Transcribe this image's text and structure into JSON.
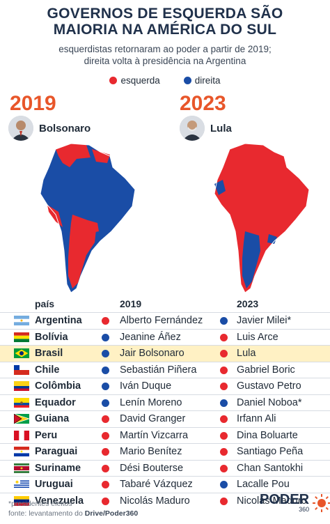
{
  "title": "GOVERNOS DE ESQUERDA SÃO MAIORIA NA AMÉRICA DO SUL",
  "subtitle_line1": "esquerdistas retornaram ao poder a partir de 2019;",
  "subtitle_line2": "direita volta à presidência na Argentina",
  "legend": {
    "left": "esquerda",
    "right": "direita"
  },
  "colors": {
    "left": "#e8292f",
    "right": "#1a4da6",
    "accent": "#e8562a",
    "highlight": "#fff1c4"
  },
  "panels": [
    {
      "year": "2019",
      "president": "Bolsonaro"
    },
    {
      "year": "2023",
      "president": "Lula"
    }
  ],
  "table_headers": {
    "country": "país",
    "y1": "2019",
    "y2": "2023"
  },
  "rows": [
    {
      "country": "Argentina",
      "p2019": "Alberto Fernández",
      "s2019": "left",
      "p2023": "Javier Milei*",
      "s2023": "right"
    },
    {
      "country": "Bolívia",
      "p2019": "Jeanine Áñez",
      "s2019": "right",
      "p2023": "Luis Arce",
      "s2023": "left"
    },
    {
      "country": "Brasil",
      "p2019": "Jair Bolsonaro",
      "s2019": "right",
      "p2023": "Lula",
      "s2023": "left"
    },
    {
      "country": "Chile",
      "p2019": "Sebastián Piñera",
      "s2019": "right",
      "p2023": "Gabriel Boric",
      "s2023": "left"
    },
    {
      "country": "Colômbia",
      "p2019": "Iván Duque",
      "s2019": "right",
      "p2023": "Gustavo Petro",
      "s2023": "left"
    },
    {
      "country": "Equador",
      "p2019": "Lenín Moreno",
      "s2019": "right",
      "p2023": "Daniel Noboa*",
      "s2023": "right"
    },
    {
      "country": "Guiana",
      "p2019": "David Granger",
      "s2019": "left",
      "p2023": "Irfann Ali",
      "s2023": "left"
    },
    {
      "country": "Peru",
      "p2019": "Martín Vizcarra",
      "s2019": "left",
      "p2023": "Dina Boluarte",
      "s2023": "left"
    },
    {
      "country": "Paraguai",
      "p2019": "Mario Benítez",
      "s2019": "left",
      "p2023": "Santiago Peña",
      "s2023": "left"
    },
    {
      "country": "Suriname",
      "p2019": "Dési Bouterse",
      "s2019": "left",
      "p2023": "Chan Santokhi",
      "s2023": "left"
    },
    {
      "country": "Uruguai",
      "p2019": "Tabaré Vázquez",
      "s2019": "left",
      "p2023": "Lacalle Pou",
      "s2023": "right"
    },
    {
      "country": "Venezuela",
      "p2019": "Nicolás Maduro",
      "s2019": "left",
      "p2023": "Nicolás Maduro",
      "s2023": "left"
    }
  ],
  "footnote1": "*presidentes eleitos",
  "footnote2_prefix": "fonte: levantamento do ",
  "footnote2_source": "Drive/Poder360",
  "logo_word": "PODER",
  "logo_number": "360"
}
